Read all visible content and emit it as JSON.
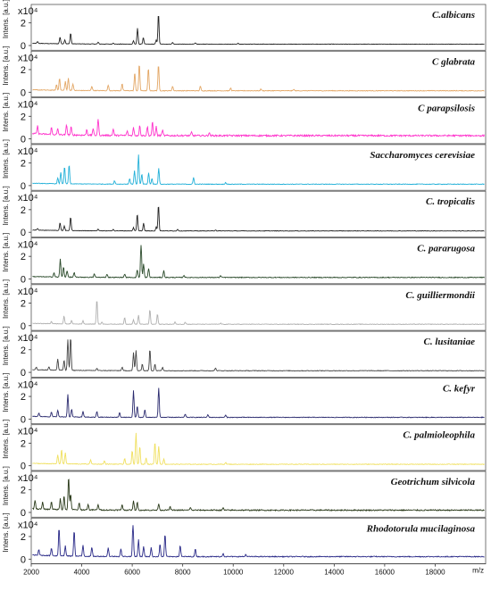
{
  "chart_data": {
    "type": "line",
    "title": "",
    "xlabel": "m/z",
    "ylabel": "Intens. [a.u.]",
    "exponent_label": "x10⁴",
    "xlim": [
      2000,
      20000
    ],
    "x_ticks": [
      "2000",
      "4000",
      "6000",
      "8000",
      "10000",
      "12000",
      "14000",
      "16000",
      "18000"
    ],
    "ylim": [
      0,
      3
    ],
    "y_ticks": [
      "0",
      "2"
    ],
    "grid": false,
    "series": [
      {
        "name": "C.albicans",
        "color": "#222222",
        "baseline": 0.1,
        "noise": 0.04,
        "peaks": [
          [
            2250,
            0.15
          ],
          [
            3140,
            0.6
          ],
          [
            3330,
            0.35
          ],
          [
            3560,
            0.95
          ],
          [
            4650,
            0.15
          ],
          [
            5250,
            0.1
          ],
          [
            6050,
            0.3
          ],
          [
            6210,
            1.4
          ],
          [
            6440,
            0.6
          ],
          [
            6950,
            0.35
          ],
          [
            7040,
            2.7
          ],
          [
            7600,
            0.15
          ],
          [
            8500,
            0.1
          ],
          [
            10200,
            0.08
          ]
        ]
      },
      {
        "name": "C glabrata",
        "color": "#e3a766",
        "baseline": 0.1,
        "noise": 0.06,
        "peaks": [
          [
            3000,
            0.5
          ],
          [
            3120,
            1.1
          ],
          [
            3350,
            0.8
          ],
          [
            3470,
            1.1
          ],
          [
            3650,
            0.6
          ],
          [
            4400,
            0.4
          ],
          [
            5050,
            0.5
          ],
          [
            5600,
            0.6
          ],
          [
            6100,
            1.6
          ],
          [
            6280,
            2.4
          ],
          [
            6640,
            2.0
          ],
          [
            7040,
            2.3
          ],
          [
            7600,
            0.4
          ],
          [
            8700,
            0.4
          ],
          [
            9900,
            0.25
          ],
          [
            11100,
            0.15
          ],
          [
            12400,
            0.12
          ]
        ]
      },
      {
        "name": "C parapsilosis",
        "color": "#ff33cc",
        "baseline": 0.22,
        "noise": 0.14,
        "peaks": [
          [
            2250,
            0.7
          ],
          [
            2800,
            0.6
          ],
          [
            3050,
            0.5
          ],
          [
            3400,
            0.9
          ],
          [
            3580,
            0.7
          ],
          [
            4200,
            0.5
          ],
          [
            4450,
            0.6
          ],
          [
            4650,
            1.5
          ],
          [
            5250,
            0.6
          ],
          [
            5800,
            0.4
          ],
          [
            6050,
            0.7
          ],
          [
            6300,
            0.9
          ],
          [
            6600,
            0.8
          ],
          [
            6800,
            1.2
          ],
          [
            6950,
            0.8
          ],
          [
            7200,
            0.5
          ],
          [
            8350,
            0.3
          ],
          [
            9050,
            0.25
          ]
        ]
      },
      {
        "name": "Saccharomyces cerevisiae",
        "color": "#22b0d8",
        "baseline": 0.1,
        "noise": 0.05,
        "peaks": [
          [
            3050,
            0.5
          ],
          [
            3170,
            1.0
          ],
          [
            3320,
            1.5
          ],
          [
            3500,
            1.7
          ],
          [
            5300,
            0.3
          ],
          [
            5900,
            0.5
          ],
          [
            6090,
            1.2
          ],
          [
            6250,
            2.6
          ],
          [
            6380,
            0.9
          ],
          [
            6650,
            1.0
          ],
          [
            6780,
            0.5
          ],
          [
            7050,
            1.4
          ],
          [
            8430,
            0.6
          ],
          [
            9700,
            0.15
          ]
        ]
      },
      {
        "name": "C. tropicalis",
        "color": "#222222",
        "baseline": 0.1,
        "noise": 0.04,
        "peaks": [
          [
            2250,
            0.15
          ],
          [
            3140,
            0.7
          ],
          [
            3310,
            0.4
          ],
          [
            3560,
            1.2
          ],
          [
            4650,
            0.15
          ],
          [
            5250,
            0.12
          ],
          [
            6050,
            0.3
          ],
          [
            6200,
            1.5
          ],
          [
            6450,
            0.7
          ],
          [
            6950,
            0.35
          ],
          [
            7040,
            2.3
          ],
          [
            7800,
            0.15
          ],
          [
            9300,
            0.1
          ]
        ]
      },
      {
        "name": "C. pararugosa",
        "color": "#2a4a2a",
        "baseline": 0.1,
        "noise": 0.07,
        "peaks": [
          [
            2900,
            0.4
          ],
          [
            3150,
            1.6
          ],
          [
            3280,
            0.9
          ],
          [
            3420,
            0.6
          ],
          [
            3700,
            0.4
          ],
          [
            4500,
            0.3
          ],
          [
            5000,
            0.3
          ],
          [
            5700,
            0.3
          ],
          [
            6200,
            0.7
          ],
          [
            6350,
            3.1
          ],
          [
            6450,
            1.2
          ],
          [
            6650,
            0.8
          ],
          [
            7250,
            0.6
          ],
          [
            8050,
            0.2
          ],
          [
            9500,
            0.15
          ]
        ]
      },
      {
        "name": "C. guilliermondii",
        "color": "#b0b0b0",
        "baseline": 0.1,
        "noise": 0.05,
        "peaks": [
          [
            2800,
            0.2
          ],
          [
            3300,
            0.7
          ],
          [
            3600,
            0.3
          ],
          [
            4050,
            0.3
          ],
          [
            4600,
            2.2
          ],
          [
            4800,
            0.2
          ],
          [
            5700,
            0.6
          ],
          [
            6050,
            0.4
          ],
          [
            6250,
            0.8
          ],
          [
            6700,
            1.3
          ],
          [
            7000,
            0.9
          ],
          [
            7700,
            0.2
          ],
          [
            8100,
            0.2
          ],
          [
            9500,
            0.1
          ]
        ]
      },
      {
        "name": "C. lusitaniae",
        "color": "#444444",
        "baseline": 0.12,
        "noise": 0.05,
        "peaks": [
          [
            2200,
            0.25
          ],
          [
            2700,
            0.3
          ],
          [
            3050,
            1.0
          ],
          [
            3300,
            0.9
          ],
          [
            3450,
            2.7
          ],
          [
            3560,
            3.0
          ],
          [
            4600,
            0.2
          ],
          [
            5600,
            0.3
          ],
          [
            6050,
            1.6
          ],
          [
            6150,
            1.8
          ],
          [
            6400,
            0.6
          ],
          [
            6700,
            1.9
          ],
          [
            6900,
            0.6
          ],
          [
            7200,
            0.3
          ],
          [
            9300,
            0.25
          ]
        ]
      },
      {
        "name": "C. kefyr",
        "color": "#2a2a6e",
        "baseline": 0.12,
        "noise": 0.06,
        "peaks": [
          [
            2300,
            0.3
          ],
          [
            2800,
            0.4
          ],
          [
            3050,
            0.6
          ],
          [
            3450,
            2.0
          ],
          [
            3600,
            0.7
          ],
          [
            4050,
            0.5
          ],
          [
            4600,
            0.5
          ],
          [
            5500,
            0.4
          ],
          [
            6050,
            2.4
          ],
          [
            6200,
            1.0
          ],
          [
            6500,
            0.7
          ],
          [
            7050,
            2.6
          ],
          [
            8100,
            0.3
          ],
          [
            9000,
            0.25
          ],
          [
            9700,
            0.2
          ]
        ]
      },
      {
        "name": "C. palmioleophila",
        "color": "#f0e060",
        "baseline": 0.1,
        "noise": 0.06,
        "peaks": [
          [
            3050,
            0.8
          ],
          [
            3200,
            1.3
          ],
          [
            3350,
            1.0
          ],
          [
            4350,
            0.4
          ],
          [
            4900,
            0.3
          ],
          [
            5700,
            0.5
          ],
          [
            6000,
            1.2
          ],
          [
            6150,
            2.8
          ],
          [
            6300,
            1.6
          ],
          [
            6550,
            0.6
          ],
          [
            6900,
            2.0
          ],
          [
            7050,
            1.6
          ],
          [
            7250,
            0.5
          ],
          [
            9700,
            0.15
          ]
        ]
      },
      {
        "name": "Geotrichum silvicola",
        "color": "#2a3a1a",
        "baseline": 0.15,
        "noise": 0.1,
        "peaks": [
          [
            2150,
            0.8
          ],
          [
            2450,
            0.6
          ],
          [
            2800,
            0.7
          ],
          [
            3150,
            1.0
          ],
          [
            3300,
            1.2
          ],
          [
            3480,
            2.9
          ],
          [
            3560,
            1.4
          ],
          [
            3900,
            0.6
          ],
          [
            4250,
            0.5
          ],
          [
            4650,
            0.5
          ],
          [
            5600,
            0.5
          ],
          [
            6050,
            0.8
          ],
          [
            6200,
            0.7
          ],
          [
            7050,
            0.6
          ],
          [
            7500,
            0.3
          ],
          [
            8300,
            0.25
          ],
          [
            9600,
            0.2
          ]
        ]
      },
      {
        "name": "Rhodotorula mucilaginosa",
        "color": "#2a2a88",
        "baseline": 0.18,
        "noise": 0.08,
        "peaks": [
          [
            2300,
            0.5
          ],
          [
            2800,
            0.7
          ],
          [
            3100,
            2.5
          ],
          [
            3350,
            0.9
          ],
          [
            3700,
            2.3
          ],
          [
            4050,
            1.0
          ],
          [
            4400,
            0.8
          ],
          [
            5050,
            0.8
          ],
          [
            5550,
            0.7
          ],
          [
            6030,
            3.1
          ],
          [
            6250,
            1.5
          ],
          [
            6450,
            0.9
          ],
          [
            6750,
            0.8
          ],
          [
            7100,
            1.1
          ],
          [
            7300,
            2.0
          ],
          [
            7900,
            1.0
          ],
          [
            8500,
            0.7
          ],
          [
            9600,
            0.3
          ],
          [
            10500,
            0.2
          ]
        ]
      }
    ]
  }
}
